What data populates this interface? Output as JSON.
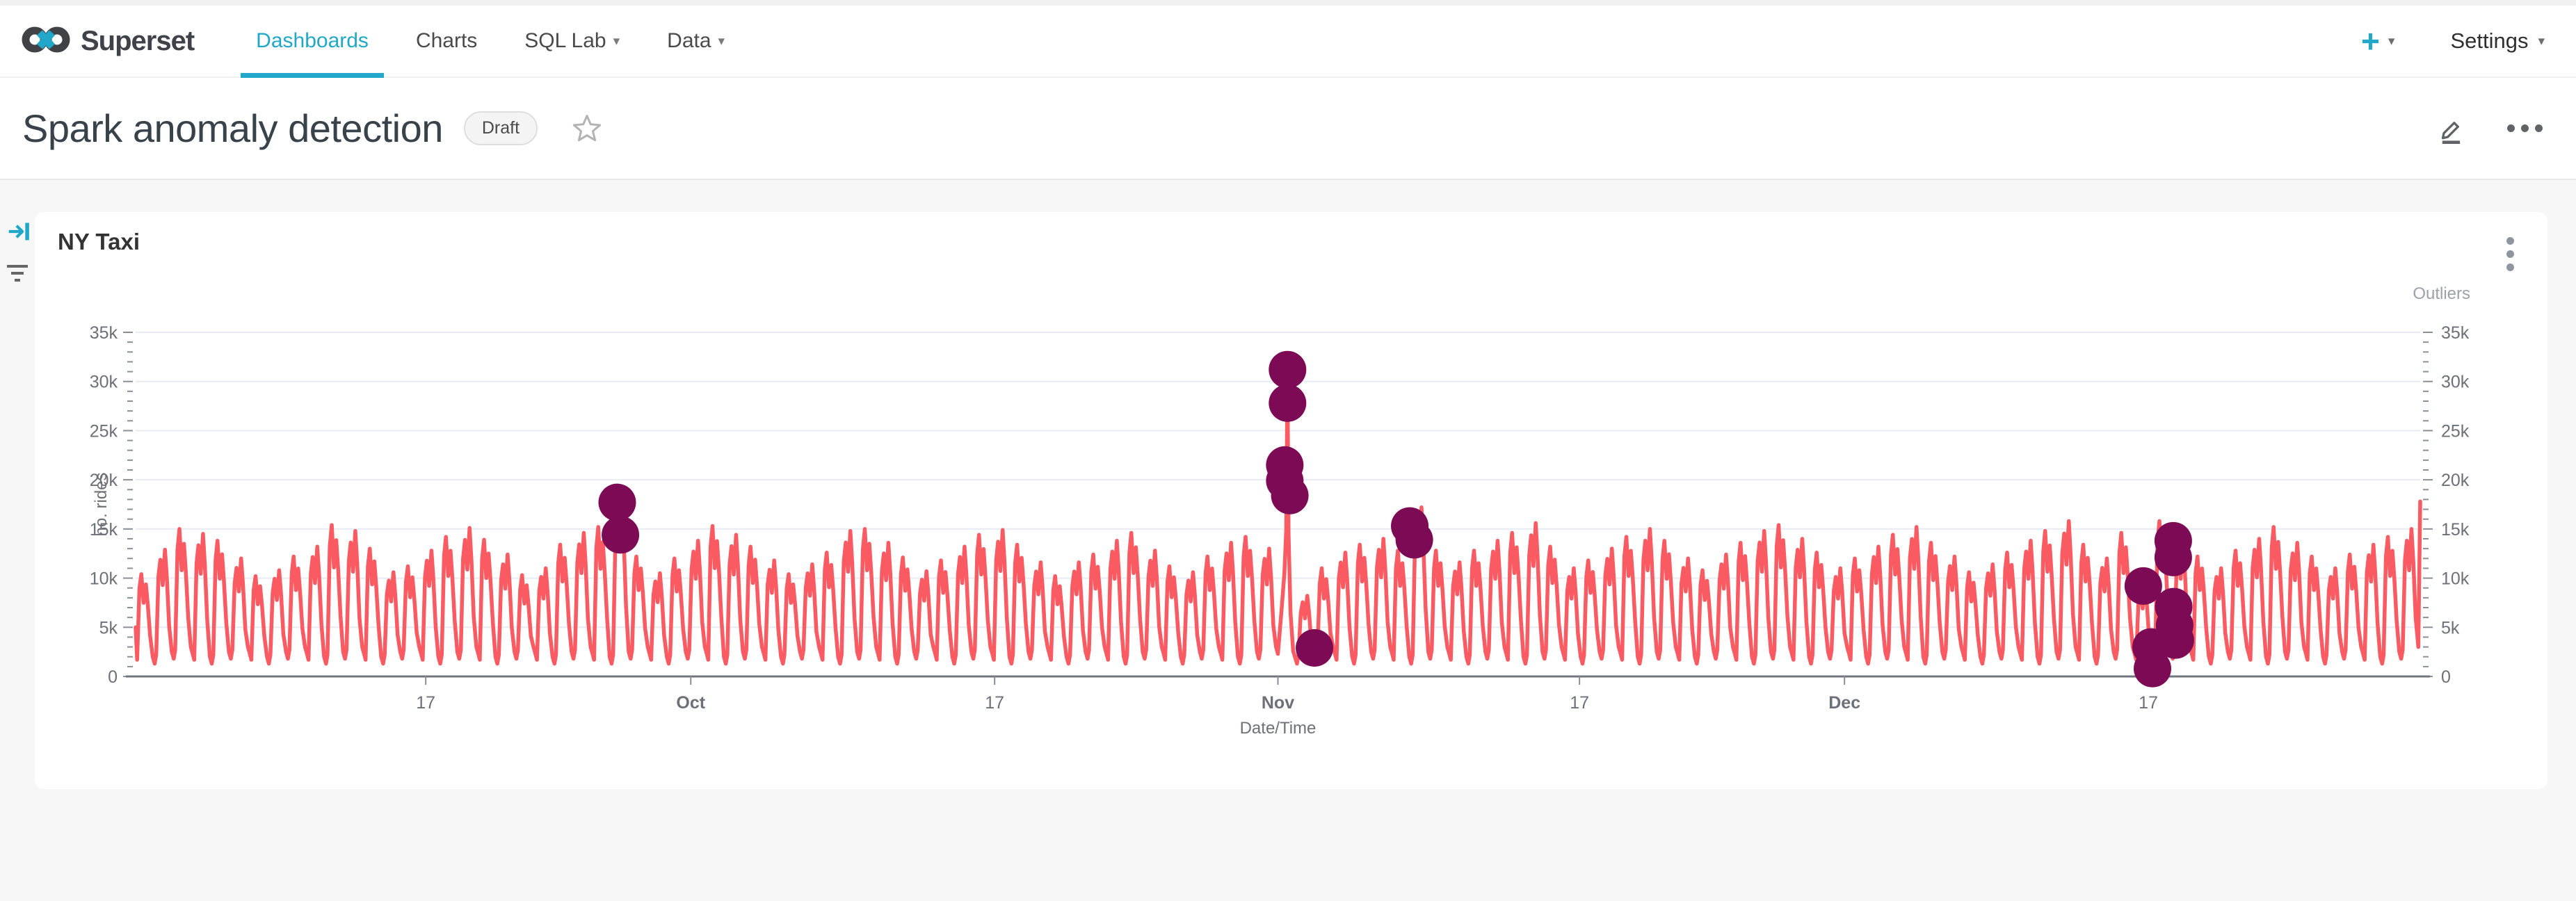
{
  "navbar": {
    "brand": "Superset",
    "items": [
      {
        "label": "Dashboards",
        "active": true,
        "caret": false
      },
      {
        "label": "Charts",
        "active": false,
        "caret": false
      },
      {
        "label": "SQL Lab",
        "active": false,
        "caret": true
      },
      {
        "label": "Data",
        "active": false,
        "caret": true
      }
    ],
    "plus_label": "+",
    "settings_label": "Settings"
  },
  "header": {
    "title": "Spark anomaly detection",
    "status_badge": "Draft"
  },
  "chart_card": {
    "title": "NY Taxi"
  },
  "colors": {
    "accent": "#20A7C9",
    "line": "#FA5A61",
    "outlier": "#7C0A55",
    "grid": "#E9EBF4",
    "axis_text": "#6E7079",
    "axis_line": "#71757D",
    "tick": "#8A8F98",
    "page_bg": "#F7F7F7",
    "card_bg": "#FFFFFF"
  },
  "chart_data": {
    "type": "line",
    "title": "NY Taxi",
    "xlabel": "Date/Time",
    "ylabel": "no. rides",
    "ylabel_right": "Outliers",
    "ylim": [
      0,
      35000
    ],
    "grid": "horizontal",
    "y_tick_step": 5000,
    "y_minor_step": 1000,
    "y_tick_labels": [
      "0",
      "5k",
      "10k",
      "15k",
      "20k",
      "25k",
      "30k",
      "35k"
    ],
    "x_ticks": [
      {
        "pos": 0.127,
        "label": "17",
        "bold": false
      },
      {
        "pos": 0.243,
        "label": "Oct",
        "bold": true
      },
      {
        "pos": 0.376,
        "label": "17",
        "bold": false
      },
      {
        "pos": 0.5,
        "label": "Nov",
        "bold": true
      },
      {
        "pos": 0.632,
        "label": "17",
        "bold": false
      },
      {
        "pos": 0.748,
        "label": "Dec",
        "bold": true
      },
      {
        "pos": 0.881,
        "label": "17",
        "bold": false
      }
    ],
    "series": [
      {
        "name": "rides",
        "type": "line",
        "pattern": "daily-double-peak",
        "days": 120,
        "start_value": 5000,
        "end_value": 17800,
        "daily_peaks": [
          10400,
          12900,
          15000,
          14500,
          13800,
          12000,
          10200,
          10800,
          12200,
          13200,
          15400,
          14800,
          13000,
          10600,
          11200,
          12800,
          14200,
          15100,
          13900,
          12400,
          10300,
          11000,
          13400,
          14600,
          15200,
          17800,
          12200,
          10500,
          12000,
          13800,
          15300,
          14400,
          13200,
          11800,
          10400,
          11400,
          12600,
          14800,
          15000,
          13600,
          12100,
          10700,
          11800,
          13200,
          14400,
          14900,
          13400,
          11600,
          10200,
          11600,
          12400,
          13800,
          14600,
          12800,
          11200,
          10600,
          12200,
          13600,
          14200,
          13000,
          31200,
          8200,
          11000,
          12600,
          13400,
          14000,
          12800,
          17200,
          12800,
          11600,
          12800,
          13800,
          14600,
          15600,
          13200,
          11000,
          11800,
          13000,
          14200,
          15000,
          13800,
          12000,
          10800,
          12400,
          13600,
          14800,
          15400,
          14000,
          12600,
          11000,
          12000,
          13200,
          14400,
          15200,
          13600,
          12200,
          10600,
          11400,
          12600,
          13800,
          14800,
          15800,
          13400,
          12000,
          14600,
          9600,
          15800,
          13800,
          12200,
          11000,
          12800,
          14000,
          15200,
          13600,
          12200,
          11000,
          12400,
          13400,
          14200,
          15000
        ]
      },
      {
        "name": "Outliers",
        "type": "scatter",
        "points": [
          [
            0.2108,
            17700
          ],
          [
            0.2122,
            14400
          ],
          [
            0.503,
            21500
          ],
          [
            0.503,
            19900
          ],
          [
            0.5042,
            31200
          ],
          [
            0.5042,
            27800
          ],
          [
            0.5052,
            18400
          ],
          [
            0.516,
            2900
          ],
          [
            0.5577,
            15300
          ],
          [
            0.5597,
            13900
          ],
          [
            0.8788,
            9200
          ],
          [
            0.8822,
            3000
          ],
          [
            0.8828,
            800
          ],
          [
            0.8919,
            13800
          ],
          [
            0.8919,
            12100
          ],
          [
            0.8921,
            7100
          ],
          [
            0.8925,
            5200
          ],
          [
            0.8928,
            3700
          ]
        ]
      }
    ]
  }
}
